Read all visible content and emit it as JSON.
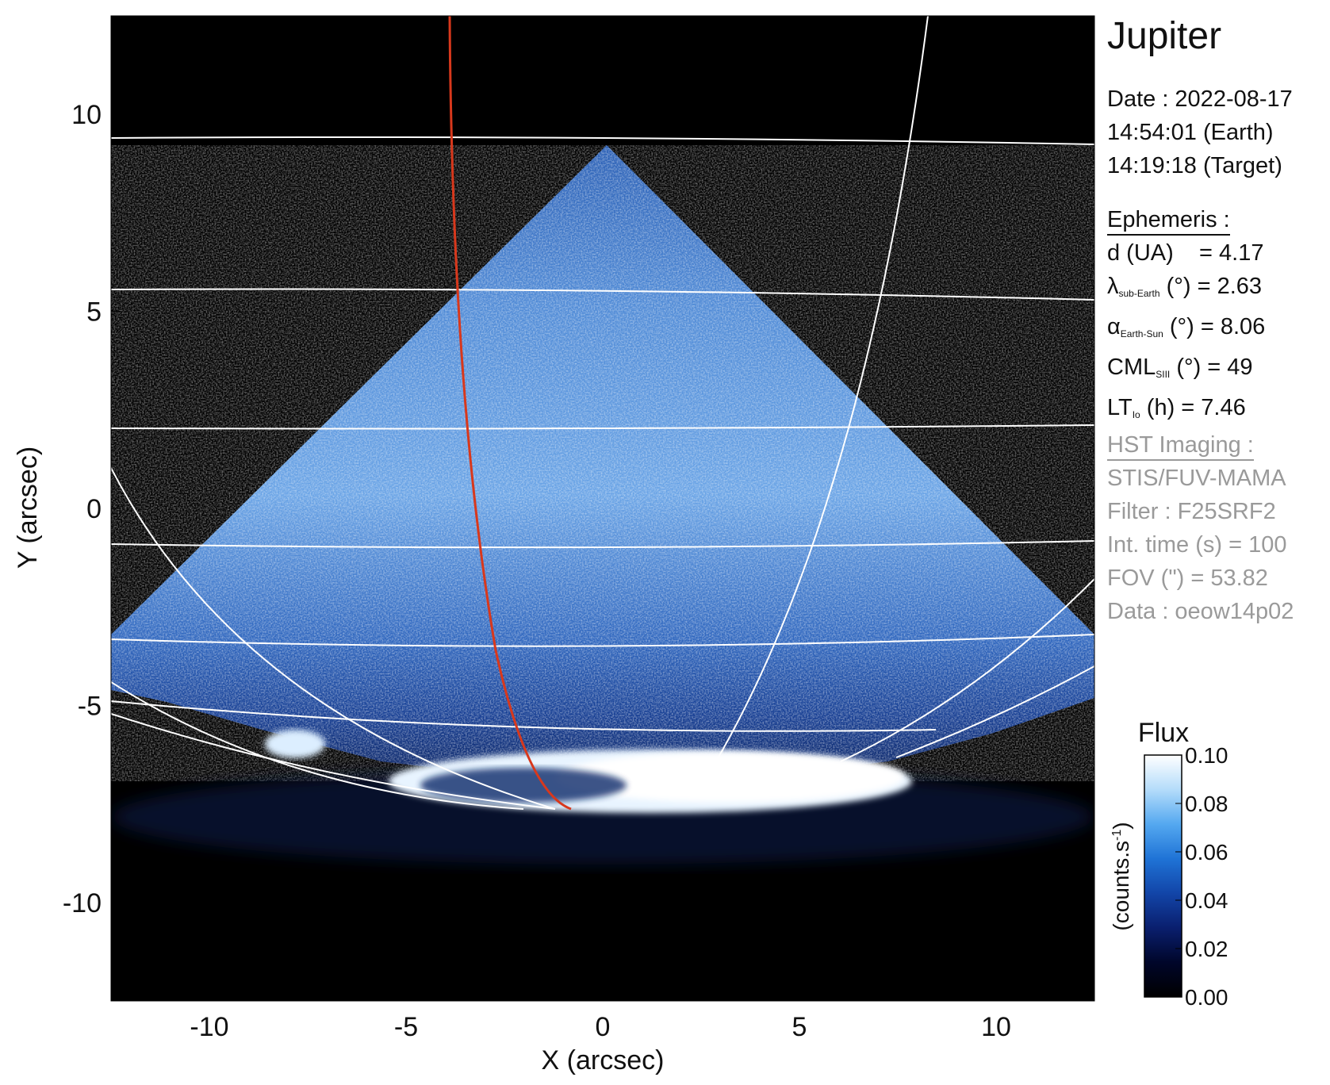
{
  "target_name": "Jupiter",
  "observation": {
    "date_line": "Date : 2022-08-17",
    "earth_time_line": "14:54:01 (Earth)",
    "target_time_line": "14:19:18 (Target)"
  },
  "ephemeris": {
    "heading": "Ephemeris :",
    "d": {
      "label": "d (UA)",
      "value_text": "= 4.17"
    },
    "lambda": {
      "symbol": "λ",
      "subscript": "sub-Earth",
      "unit": "(°)",
      "value_text": "= 2.63"
    },
    "alpha": {
      "symbol": "α",
      "subscript": "Earth-Sun",
      "unit": "(°)",
      "value_text": "= 8.06"
    },
    "cml": {
      "symbol": "CML",
      "subscript": "SIII",
      "unit": "(°)",
      "value_text": "= 49"
    },
    "lt": {
      "symbol": "LT",
      "subscript": "Io",
      "unit": "(h)",
      "value_text": "= 7.46"
    }
  },
  "hst": {
    "heading": "HST Imaging :",
    "lines": [
      "STIS/FUV-MAMA",
      "Filter : F25SRF2",
      "Int. time (s) = 100",
      "FOV (\") = 53.82",
      "Data : oeow14p02"
    ]
  },
  "axes": {
    "xlabel": "X (arcsec)",
    "ylabel": "Y (arcsec)",
    "xlim": [
      -12.5,
      12.5
    ],
    "ylim": [
      -12.5,
      12.5
    ],
    "xticks": [
      -10,
      -5,
      0,
      5,
      10
    ],
    "yticks": [
      -10,
      -5,
      0,
      5,
      10
    ]
  },
  "colorbar": {
    "title": "Flux",
    "unit_label": "(counts.s",
    "unit_sup": "-1",
    "unit_close": ")",
    "min": 0.0,
    "max": 0.1,
    "tick_labels": [
      "0.00",
      "0.02",
      "0.04",
      "0.06",
      "0.08",
      "0.10"
    ],
    "colors": [
      "#000000",
      "#00062a",
      "#0a1f6e",
      "#1245a8",
      "#1f73d6",
      "#54a8f0",
      "#b4dcfa",
      "#ffffff"
    ]
  }
}
